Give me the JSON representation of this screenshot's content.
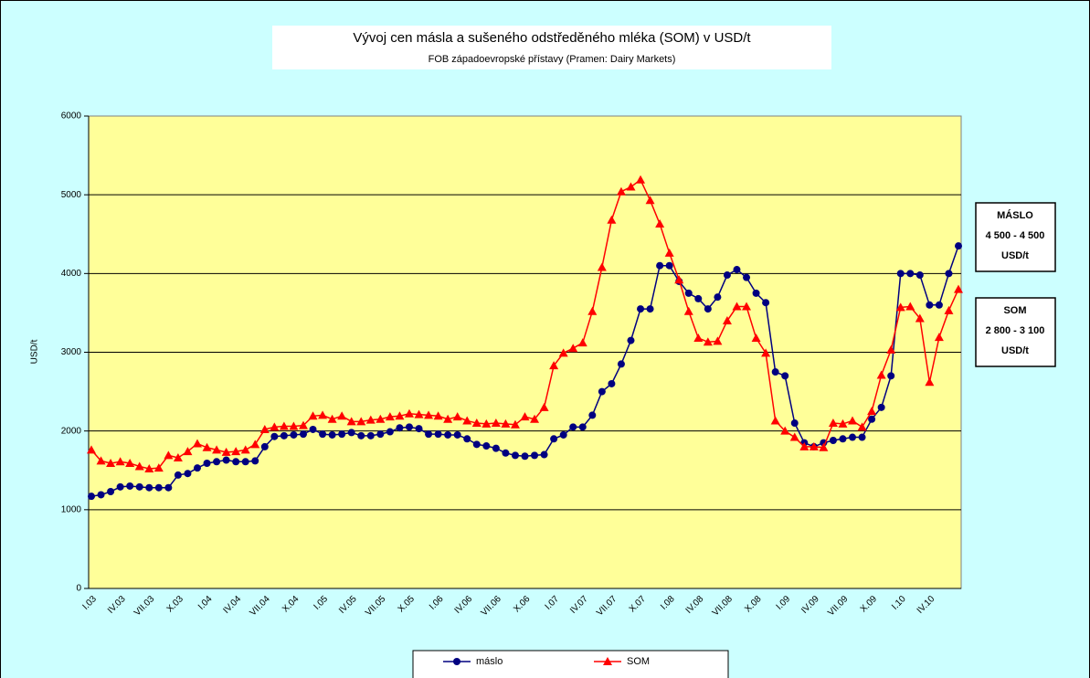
{
  "chart_data": {
    "type": "line",
    "title": "Vývoj cen másla a sušeného odstředěného mléka (SOM) v USD/t",
    "subtitle": "FOB západoevropské přístavy (Pramen: Dairy Markets)",
    "y_label": "USD/t",
    "categories": [
      "I.03",
      null,
      null,
      "IV.03",
      null,
      null,
      "VII.03",
      null,
      null,
      "X.03",
      null,
      null,
      "I.04",
      null,
      null,
      "IV.04",
      null,
      null,
      "VII.04",
      null,
      null,
      "X.04",
      null,
      null,
      "I.05",
      null,
      null,
      "IV.05",
      null,
      null,
      "VII.05",
      null,
      null,
      "X.05",
      null,
      null,
      "I.06",
      null,
      null,
      "IV.06",
      null,
      null,
      "VII.06",
      null,
      null,
      "X.06",
      null,
      null,
      "I.07",
      null,
      null,
      "IV.07",
      null,
      null,
      "VII.07",
      null,
      null,
      "X.07",
      null,
      null,
      "I.08",
      null,
      null,
      "IV.08",
      null,
      null,
      "VII.08",
      null,
      null,
      "X.08",
      null,
      null,
      "I.09",
      null,
      null,
      "IV.09",
      null,
      null,
      "VII.09",
      null,
      null,
      "X.09",
      null,
      null,
      "I.10",
      null,
      null,
      "IV.10",
      null,
      null,
      null
    ],
    "series": [
      {
        "name": "máslo",
        "color": "#000080",
        "marker": "circle",
        "values": [
          1170,
          1190,
          1230,
          1290,
          1300,
          1290,
          1280,
          1280,
          1280,
          1440,
          1460,
          1530,
          1590,
          1610,
          1630,
          1610,
          1610,
          1620,
          1800,
          1930,
          1940,
          1950,
          1960,
          2020,
          1960,
          1950,
          1960,
          1980,
          1940,
          1940,
          1960,
          1990,
          2040,
          2050,
          2030,
          1960,
          1960,
          1950,
          1950,
          1900,
          1830,
          1810,
          1780,
          1720,
          1690,
          1680,
          1690,
          1700,
          1900,
          1950,
          2050,
          2050,
          2200,
          2500,
          2600,
          2850,
          3150,
          3550,
          3550,
          4100,
          4100,
          3900,
          3750,
          3680,
          3550,
          3700,
          3980,
          4050,
          3950,
          3750,
          3630,
          2750,
          2700,
          2100,
          1850,
          1800,
          1850,
          1880,
          1900,
          1920,
          1920,
          2150,
          2300,
          2700,
          4000,
          4000,
          3980,
          3600,
          3600,
          4000,
          4350
        ]
      },
      {
        "name": "SOM",
        "color": "#ff0000",
        "marker": "triangle",
        "values": [
          1760,
          1620,
          1590,
          1610,
          1590,
          1550,
          1520,
          1530,
          1690,
          1660,
          1740,
          1840,
          1790,
          1760,
          1730,
          1740,
          1760,
          1830,
          2020,
          2050,
          2060,
          2060,
          2070,
          2190,
          2200,
          2150,
          2190,
          2120,
          2120,
          2140,
          2150,
          2180,
          2190,
          2220,
          2210,
          2200,
          2190,
          2150,
          2180,
          2130,
          2100,
          2090,
          2100,
          2090,
          2080,
          2180,
          2150,
          2300,
          2830,
          2990,
          3050,
          3120,
          3520,
          4080,
          4680,
          5040,
          5100,
          5190,
          4930,
          4630,
          4260,
          3920,
          3520,
          3180,
          3130,
          3140,
          3400,
          3580,
          3580,
          3180,
          2990,
          2130,
          2000,
          1920,
          1800,
          1800,
          1790,
          2100,
          2090,
          2130,
          2050,
          2250,
          2710,
          3030,
          3570,
          3580,
          3430,
          2620,
          3190,
          3530,
          3800
        ]
      }
    ],
    "ylim": [
      0,
      6000
    ],
    "yticks": [
      0,
      1000,
      2000,
      3000,
      4000,
      5000,
      6000
    ],
    "grid": true,
    "legend": "bottom",
    "annotations": [
      {
        "lines": [
          "MÁSLO",
          "4 500 - 4 500",
          "USD/t"
        ]
      },
      {
        "lines": [
          "SOM",
          "2 800 - 3 100",
          "USD/t"
        ]
      }
    ]
  }
}
